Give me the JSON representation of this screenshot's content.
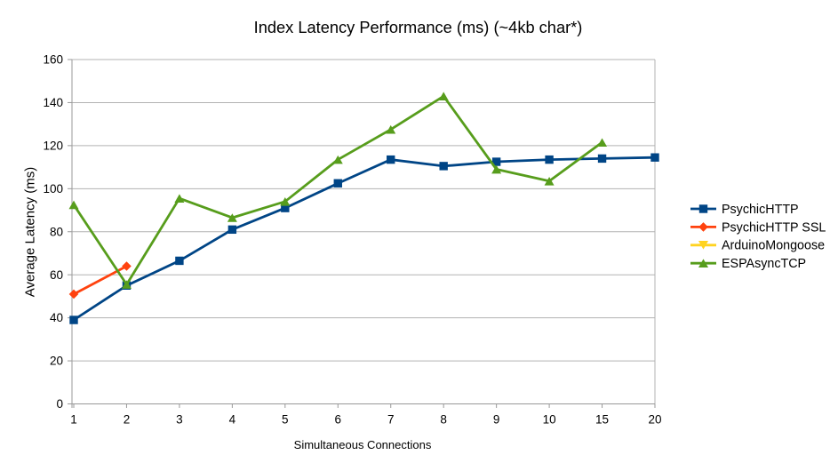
{
  "chart_data": {
    "type": "line",
    "title": "Index Latency Performance (ms) (~4kb char*)",
    "xlabel": "Simultaneous Connections",
    "ylabel": "Average Latency (ms)",
    "categories": [
      "1",
      "2",
      "3",
      "4",
      "5",
      "6",
      "7",
      "8",
      "9",
      "10",
      "15",
      "20"
    ],
    "ylim": [
      0,
      160
    ],
    "ytick_step": 20,
    "grid": "horizontal",
    "legend_position": "right",
    "background_color": "#ffffff",
    "grid_color": "#b3b3b3",
    "axis_color": "#999999",
    "text_color": "#000000",
    "series": [
      {
        "name": "PsychicHTTP",
        "color": "#004586",
        "marker": "square",
        "values": [
          39,
          55,
          66.5,
          81,
          91,
          102.5,
          113.5,
          110.5,
          112.5,
          113.5,
          114,
          114.5
        ]
      },
      {
        "name": "PsychicHTTP SSL",
        "color": "#ff420e",
        "marker": "diamond",
        "values": [
          51,
          64,
          null,
          null,
          null,
          null,
          null,
          null,
          null,
          null,
          null,
          null
        ]
      },
      {
        "name": "ArduinoMongoose",
        "color": "#ffd320",
        "marker": "triangle-down",
        "values": [
          null,
          null,
          null,
          null,
          null,
          null,
          null,
          null,
          null,
          null,
          null,
          null
        ]
      },
      {
        "name": "ESPAsyncTCP",
        "color": "#579d1c",
        "marker": "triangle-up",
        "values": [
          92.5,
          55.5,
          95.5,
          86.5,
          94,
          113.5,
          127.5,
          143,
          109,
          103.5,
          121.5,
          null
        ]
      }
    ]
  }
}
